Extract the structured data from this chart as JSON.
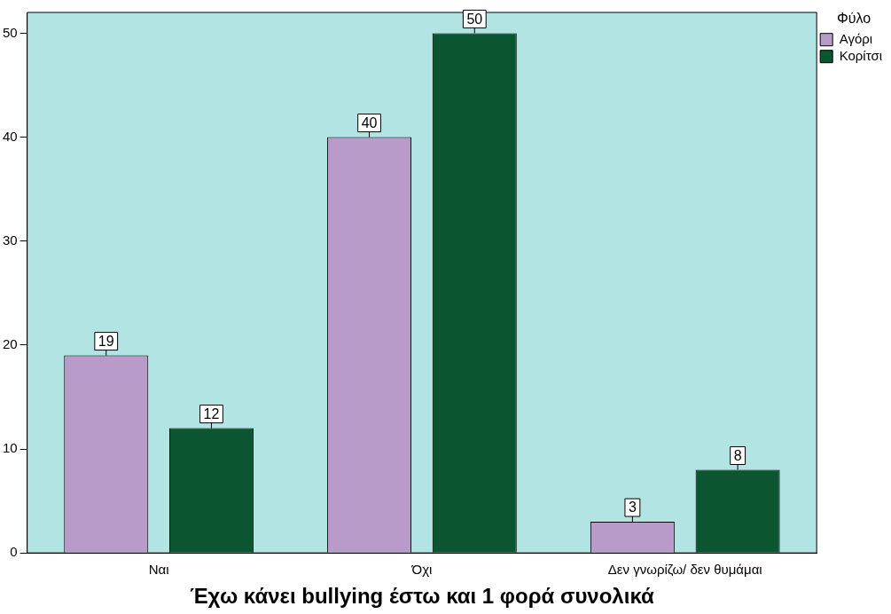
{
  "chart_data": {
    "type": "bar",
    "xlabel": "Έχω κάνει bullying έστω και 1 φορά συνολικά",
    "legend_title": "Φύλο",
    "categories": [
      "Ναι",
      "Όχι",
      "Δεν γνωρίζω/ δεν θυμάμαι"
    ],
    "series": [
      {
        "name": "Αγόρι",
        "color": "#b89bc9",
        "values": [
          19,
          40,
          3
        ]
      },
      {
        "name": "Κορίτσι",
        "color": "#0b5630",
        "values": [
          12,
          50,
          8
        ]
      }
    ],
    "ylim": [
      0,
      52
    ],
    "yticks": [
      0,
      10,
      20,
      30,
      40,
      50
    ],
    "grid": false,
    "legend": "top right",
    "data_labels": true
  }
}
